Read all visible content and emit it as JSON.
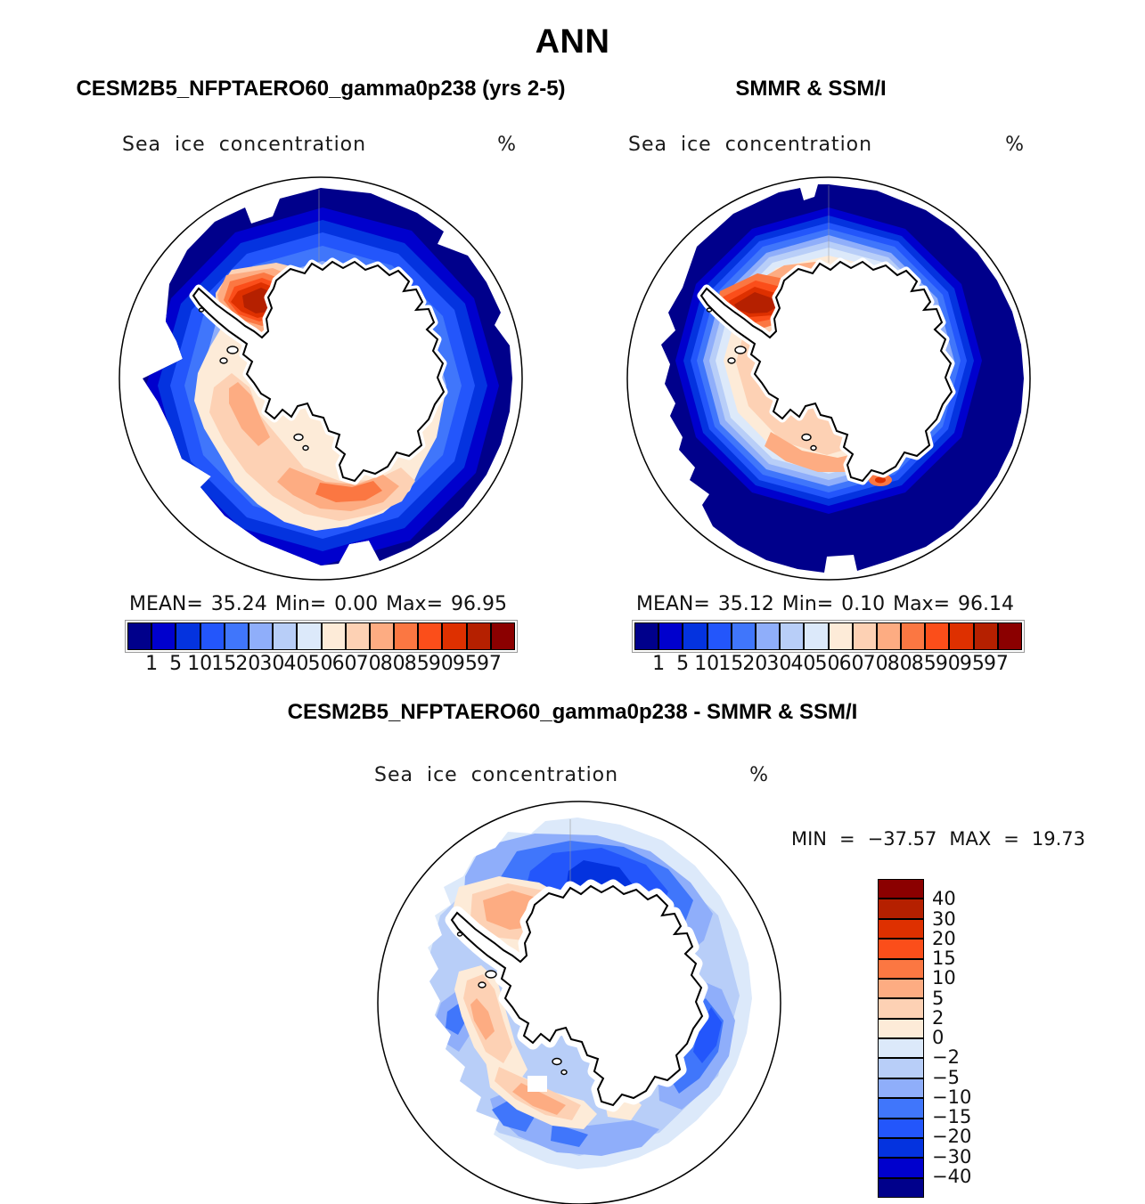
{
  "header": {
    "title": "ANN"
  },
  "panels": {
    "model": {
      "title": "CESM2B5_NFPTAERO60_gamma0p238 (yrs 2-5)",
      "subtitle": "Sea ice concentration",
      "units": "%",
      "stats": {
        "mean_label": "MEAN=",
        "mean": "35.24",
        "min_label": "Min=",
        "min": "0.00",
        "max_label": "Max=",
        "max": "96.95"
      }
    },
    "obs": {
      "title": "SMMR & SSM/I",
      "subtitle": "Sea ice concentration",
      "units": "%",
      "stats": {
        "mean_label": "MEAN=",
        "mean": "35.12",
        "min_label": "Min=",
        "min": "0.10",
        "max_label": "Max=",
        "max": "96.14"
      }
    },
    "diff": {
      "title": "CESM2B5_NFPTAERO60_gamma0p238 - SMMR & SSM/I",
      "subtitle": "Sea ice concentration",
      "units": "%",
      "stats": {
        "min_label": "MIN",
        "eq1": "=",
        "min": "−37.57",
        "max_label": "MAX",
        "eq2": "=",
        "max": "19.73"
      }
    }
  },
  "palette": [
    "#00008B",
    "#0000CD",
    "#0433DF",
    "#2356FB",
    "#4076FB",
    "#8FAEFA",
    "#B8CEF8",
    "#DCE9FA",
    "#FDEBD8",
    "#FDD1B4",
    "#FDAC82",
    "#FB7742",
    "#FB4E1A",
    "#DE3000",
    "#B52000",
    "#8B0000"
  ],
  "colorbar": {
    "conc_ticks": [
      "1",
      "5",
      "10",
      "15",
      "20",
      "30",
      "40",
      "50",
      "60",
      "70",
      "80",
      "85",
      "90",
      "95",
      "97"
    ],
    "diff_ticks": [
      "40",
      "30",
      "20",
      "15",
      "10",
      "5",
      "2",
      "0",
      "−2",
      "−5",
      "−10",
      "−15",
      "−20",
      "−30",
      "−40"
    ]
  },
  "chart_data": [
    {
      "type": "heatmap",
      "panel": "model",
      "title": "CESM2B5_NFPTAERO60_gamma0p238 (yrs 2-5)",
      "variable": "Sea ice concentration",
      "units": "%",
      "projection": "antarctic polar stereographic map",
      "stats": {
        "mean": 35.24,
        "min": 0.0,
        "max": 96.95
      },
      "contour_levels": [
        1,
        5,
        10,
        15,
        20,
        30,
        40,
        50,
        60,
        70,
        80,
        85,
        90,
        95,
        97
      ],
      "colorbar_orientation": "horizontal",
      "palette_order": "blue (low) to red (high), 16 bands"
    },
    {
      "type": "heatmap",
      "panel": "observations",
      "title": "SMMR & SSM/I",
      "variable": "Sea ice concentration",
      "units": "%",
      "projection": "antarctic polar stereographic map",
      "stats": {
        "mean": 35.12,
        "min": 0.1,
        "max": 96.14
      },
      "contour_levels": [
        1,
        5,
        10,
        15,
        20,
        30,
        40,
        50,
        60,
        70,
        80,
        85,
        90,
        95,
        97
      ],
      "colorbar_orientation": "horizontal",
      "palette_order": "blue (low) to red (high), 16 bands"
    },
    {
      "type": "heatmap",
      "panel": "difference (model minus observations)",
      "title": "CESM2B5_NFPTAERO60_gamma0p238 - SMMR & SSM/I",
      "variable": "Sea ice concentration",
      "units": "%",
      "projection": "antarctic polar stereographic map",
      "stats": {
        "min": -37.57,
        "max": 19.73
      },
      "contour_levels": [
        -40,
        -30,
        -20,
        -15,
        -10,
        -5,
        -2,
        0,
        2,
        5,
        10,
        15,
        20,
        30,
        40
      ],
      "colorbar_orientation": "vertical",
      "palette_order": "red (positive, top) to blue (negative, bottom), 16 bands"
    }
  ]
}
